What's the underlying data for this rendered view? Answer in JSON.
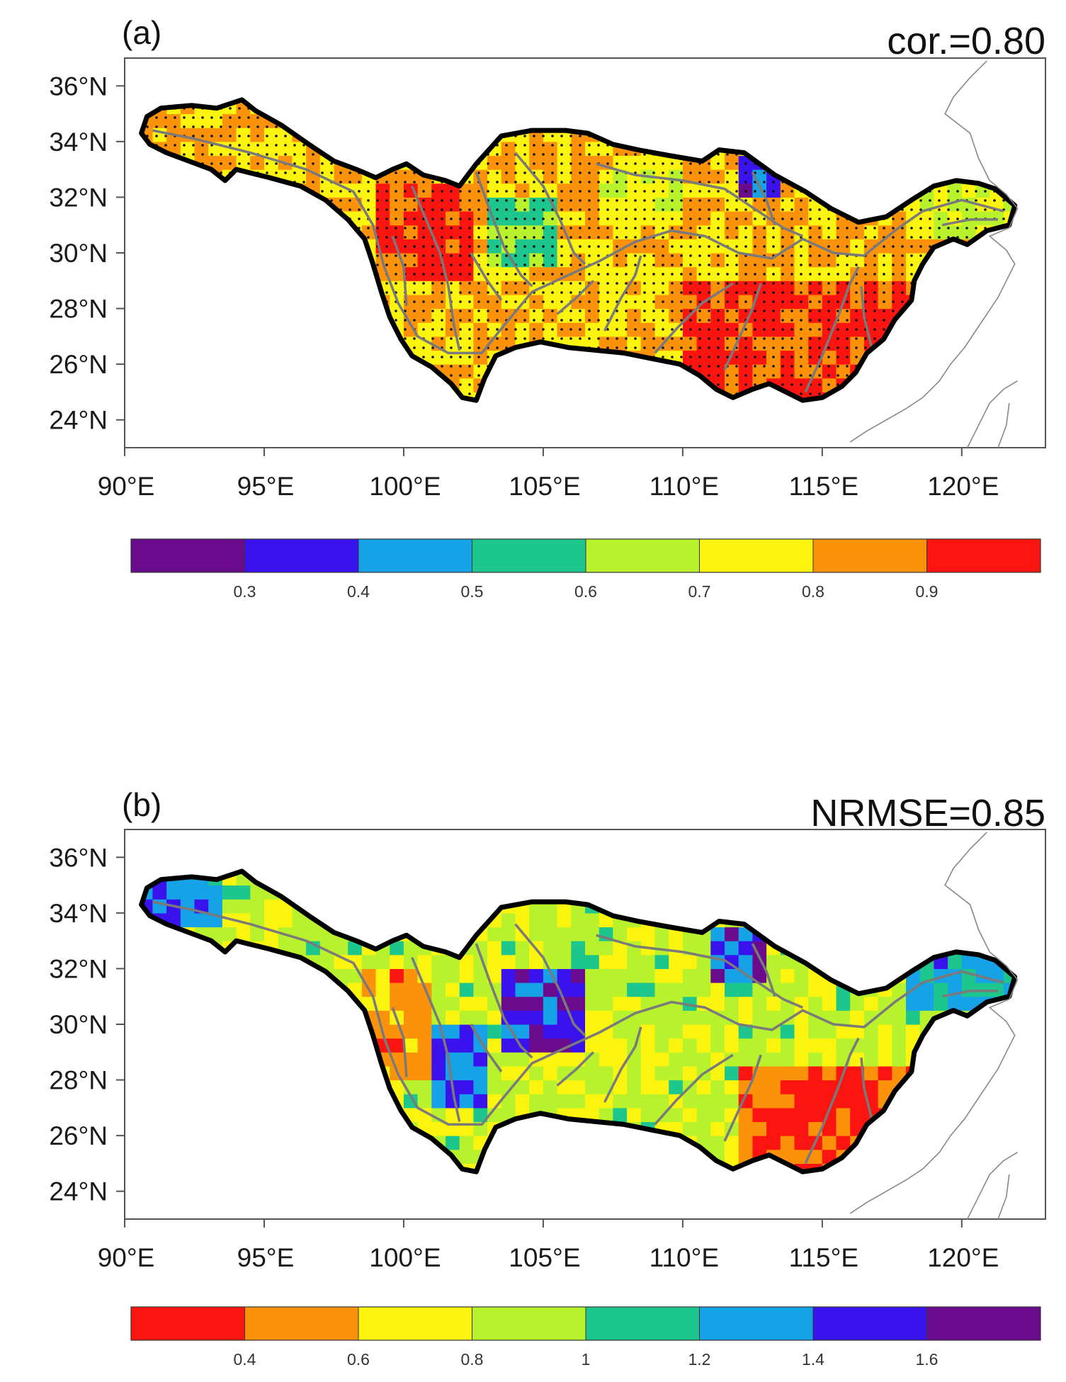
{
  "panels": [
    {
      "id": "a",
      "label": "(a)",
      "stat_text": "cor.=0.80",
      "lon_ticks": [
        "90°E",
        "95°E",
        "100°E",
        "105°E",
        "110°E",
        "115°E",
        "120°E"
      ],
      "lat_ticks": [
        "36°N",
        "34°N",
        "32°N",
        "30°N",
        "28°N",
        "26°N",
        "24°N"
      ],
      "colorbar": {
        "colors": [
          "#6a0a8c",
          "#3a12ee",
          "#16a2e6",
          "#1cc68c",
          "#b8f22c",
          "#fbf40f",
          "#fc920a",
          "#fc1410"
        ],
        "labels": [
          "0.3",
          "0.4",
          "0.5",
          "0.6",
          "0.7",
          "0.8",
          "0.9"
        ]
      },
      "stippling": "black dots over most of the basin"
    },
    {
      "id": "b",
      "label": "(b)",
      "stat_text": "NRMSE=0.85",
      "lon_ticks": [
        "90°E",
        "95°E",
        "100°E",
        "105°E",
        "110°E",
        "115°E",
        "120°E"
      ],
      "lat_ticks": [
        "36°N",
        "34°N",
        "32°N",
        "30°N",
        "28°N",
        "26°N",
        "24°N"
      ],
      "colorbar": {
        "colors": [
          "#fc1410",
          "#fc920a",
          "#fbf40f",
          "#b8f22c",
          "#1cc68c",
          "#16a2e6",
          "#3a12ee",
          "#6a0a8c"
        ],
        "labels": [
          "0.4",
          "0.6",
          "0.8",
          "1",
          "1.2",
          "1.4",
          "1.6"
        ]
      },
      "stippling": "none"
    }
  ],
  "map": {
    "extent_lon": [
      90,
      123
    ],
    "extent_lat": [
      23,
      37
    ],
    "region": "Yangtze River basin",
    "basin_outline_color": "#000000",
    "river_color": "#7a7a7a",
    "coastline_color": "#888888"
  }
}
